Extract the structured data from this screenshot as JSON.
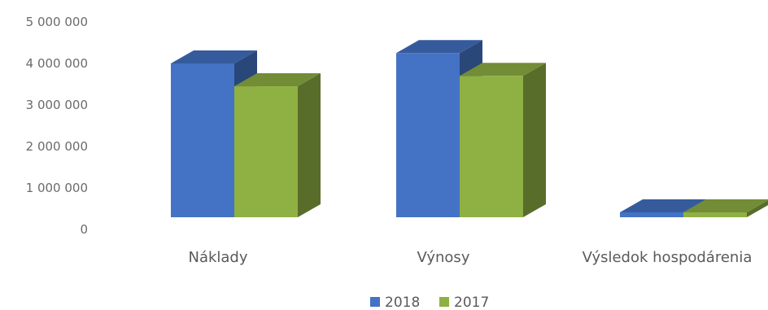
{
  "chart_data": {
    "type": "bar",
    "variant": "3d-clustered-column",
    "categories": [
      "Náklady",
      "Výnosy",
      "Výsledok hospodárenia"
    ],
    "series": [
      {
        "name": "2018",
        "color": "#4472C4",
        "values": [
          4000000,
          4250000,
          150000
        ]
      },
      {
        "name": "2017",
        "color": "#8FB043",
        "values": [
          3450000,
          3700000,
          100000
        ]
      }
    ],
    "y_ticks": [
      "0",
      "1 000 000",
      "2 000 000",
      "3 000 000",
      "4 000 000",
      "5 000 000"
    ],
    "ylim": [
      0,
      5000000
    ],
    "grid": false,
    "legend_position": "bottom"
  }
}
